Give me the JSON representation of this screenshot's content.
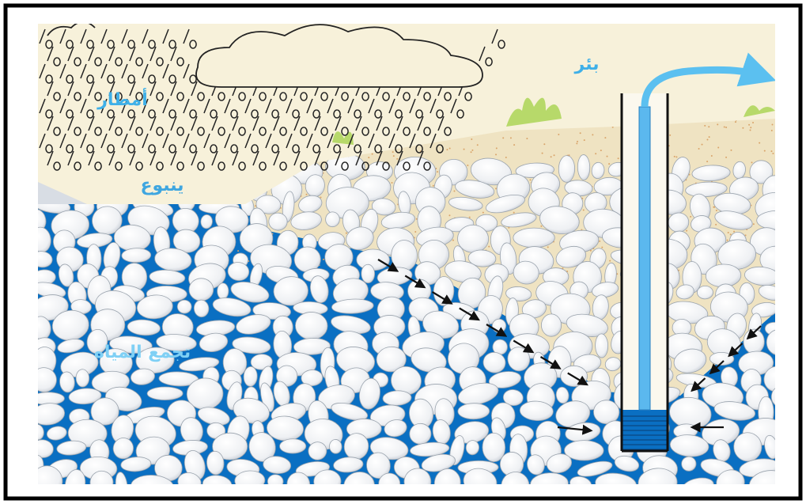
{
  "labels": {
    "rain": "أمطار",
    "spring": "ينبوع",
    "water_collection": "تجمع المياه",
    "well": "بئر"
  }
}
